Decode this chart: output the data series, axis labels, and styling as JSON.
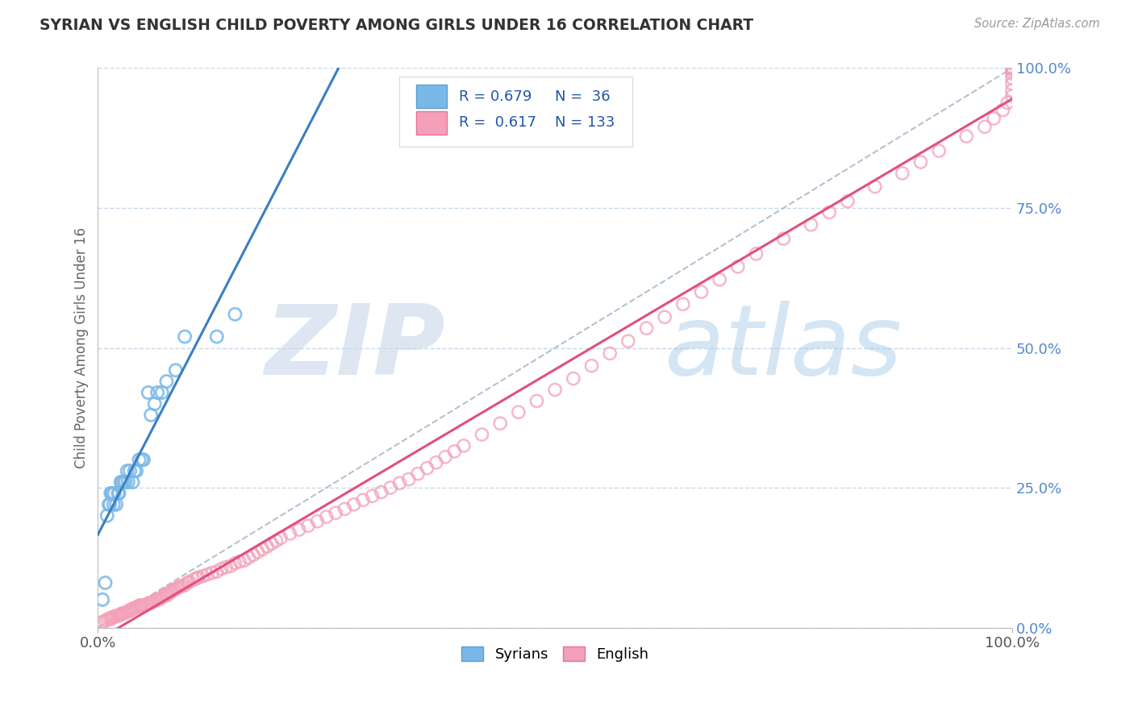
{
  "title": "SYRIAN VS ENGLISH CHILD POVERTY AMONG GIRLS UNDER 16 CORRELATION CHART",
  "source": "Source: ZipAtlas.com",
  "ylabel": "Child Poverty Among Girls Under 16",
  "syrians_R": 0.679,
  "syrians_N": 36,
  "english_R": 0.617,
  "english_N": 133,
  "syrians_color": "#7ab8e8",
  "syrians_edge_color": "#5a9fd4",
  "english_color": "#f4a0b8",
  "english_edge_color": "#e8729a",
  "syrians_line_color": "#3a7fc1",
  "english_line_color": "#e05080",
  "diag_line_color": "#aabccc",
  "background_color": "#ffffff",
  "grid_color": "#c8d8e8",
  "xlim": [
    0.0,
    1.0
  ],
  "ylim": [
    0.0,
    1.0
  ],
  "xtick_labels": [
    "0.0%",
    "100.0%"
  ],
  "ytick_labels_right": [
    "0.0%",
    "25.0%",
    "50.0%",
    "75.0%",
    "100.0%"
  ],
  "ytick_values_right": [
    0.0,
    0.25,
    0.5,
    0.75,
    1.0
  ],
  "watermark_zip": "ZIP",
  "watermark_atlas": "atlas",
  "title_color": "#333333",
  "source_color": "#999999",
  "ylabel_color": "#666666",
  "tick_color": "#555555",
  "right_tick_color": "#5588cc",
  "legend_text_color": "#2255aa",
  "syrians_x": [
    0.005,
    0.008,
    0.01,
    0.012,
    0.013,
    0.014,
    0.015,
    0.016,
    0.017,
    0.018,
    0.02,
    0.022,
    0.023,
    0.025,
    0.026,
    0.028,
    0.03,
    0.032,
    0.033,
    0.035,
    0.038,
    0.04,
    0.042,
    0.045,
    0.048,
    0.05,
    0.055,
    0.058,
    0.062,
    0.065,
    0.07,
    0.075,
    0.085,
    0.095,
    0.13,
    0.15
  ],
  "syrians_y": [
    0.05,
    0.08,
    0.2,
    0.22,
    0.22,
    0.24,
    0.24,
    0.24,
    0.22,
    0.24,
    0.22,
    0.24,
    0.24,
    0.26,
    0.26,
    0.26,
    0.26,
    0.28,
    0.26,
    0.28,
    0.26,
    0.28,
    0.28,
    0.3,
    0.3,
    0.3,
    0.42,
    0.38,
    0.4,
    0.42,
    0.42,
    0.44,
    0.46,
    0.52,
    0.52,
    0.56
  ],
  "english_x": [
    0.005,
    0.008,
    0.01,
    0.012,
    0.014,
    0.015,
    0.016,
    0.018,
    0.02,
    0.022,
    0.024,
    0.025,
    0.026,
    0.028,
    0.03,
    0.032,
    0.034,
    0.035,
    0.036,
    0.038,
    0.04,
    0.042,
    0.044,
    0.046,
    0.048,
    0.05,
    0.052,
    0.054,
    0.056,
    0.058,
    0.06,
    0.062,
    0.064,
    0.066,
    0.068,
    0.07,
    0.072,
    0.074,
    0.076,
    0.078,
    0.08,
    0.082,
    0.084,
    0.086,
    0.088,
    0.09,
    0.092,
    0.095,
    0.098,
    0.1,
    0.105,
    0.108,
    0.11,
    0.115,
    0.12,
    0.125,
    0.13,
    0.135,
    0.14,
    0.145,
    0.15,
    0.155,
    0.16,
    0.165,
    0.17,
    0.175,
    0.18,
    0.185,
    0.19,
    0.195,
    0.2,
    0.21,
    0.22,
    0.23,
    0.24,
    0.25,
    0.26,
    0.27,
    0.28,
    0.29,
    0.3,
    0.31,
    0.32,
    0.33,
    0.34,
    0.35,
    0.36,
    0.37,
    0.38,
    0.39,
    0.4,
    0.42,
    0.44,
    0.46,
    0.48,
    0.5,
    0.52,
    0.54,
    0.56,
    0.58,
    0.6,
    0.62,
    0.64,
    0.66,
    0.68,
    0.7,
    0.72,
    0.75,
    0.78,
    0.8,
    0.82,
    0.85,
    0.88,
    0.9,
    0.92,
    0.95,
    0.97,
    0.98,
    0.99,
    0.995,
    1.0,
    1.0,
    1.0,
    1.0,
    1.0,
    1.0,
    1.0,
    1.0,
    1.0,
    1.0,
    1.0,
    1.0,
    1.0
  ],
  "english_y": [
    0.01,
    0.012,
    0.014,
    0.016,
    0.015,
    0.018,
    0.018,
    0.02,
    0.02,
    0.022,
    0.022,
    0.024,
    0.025,
    0.026,
    0.026,
    0.028,
    0.03,
    0.03,
    0.032,
    0.034,
    0.034,
    0.036,
    0.038,
    0.04,
    0.04,
    0.038,
    0.04,
    0.042,
    0.044,
    0.044,
    0.046,
    0.048,
    0.05,
    0.05,
    0.052,
    0.054,
    0.056,
    0.06,
    0.058,
    0.062,
    0.064,
    0.066,
    0.068,
    0.07,
    0.072,
    0.074,
    0.074,
    0.076,
    0.08,
    0.082,
    0.086,
    0.088,
    0.09,
    0.092,
    0.095,
    0.098,
    0.1,
    0.105,
    0.108,
    0.11,
    0.115,
    0.118,
    0.12,
    0.125,
    0.13,
    0.135,
    0.14,
    0.145,
    0.15,
    0.155,
    0.16,
    0.168,
    0.175,
    0.182,
    0.19,
    0.198,
    0.205,
    0.212,
    0.22,
    0.228,
    0.235,
    0.242,
    0.25,
    0.258,
    0.265,
    0.275,
    0.285,
    0.295,
    0.305,
    0.315,
    0.325,
    0.345,
    0.365,
    0.385,
    0.405,
    0.425,
    0.445,
    0.468,
    0.49,
    0.512,
    0.535,
    0.555,
    0.578,
    0.6,
    0.622,
    0.645,
    0.668,
    0.695,
    0.72,
    0.742,
    0.762,
    0.788,
    0.812,
    0.832,
    0.852,
    0.878,
    0.895,
    0.91,
    0.925,
    0.938,
    0.95,
    0.96,
    0.972,
    0.982,
    0.99,
    0.995,
    1.0,
    1.0,
    1.0,
    1.0,
    1.0,
    1.0,
    1.0
  ]
}
